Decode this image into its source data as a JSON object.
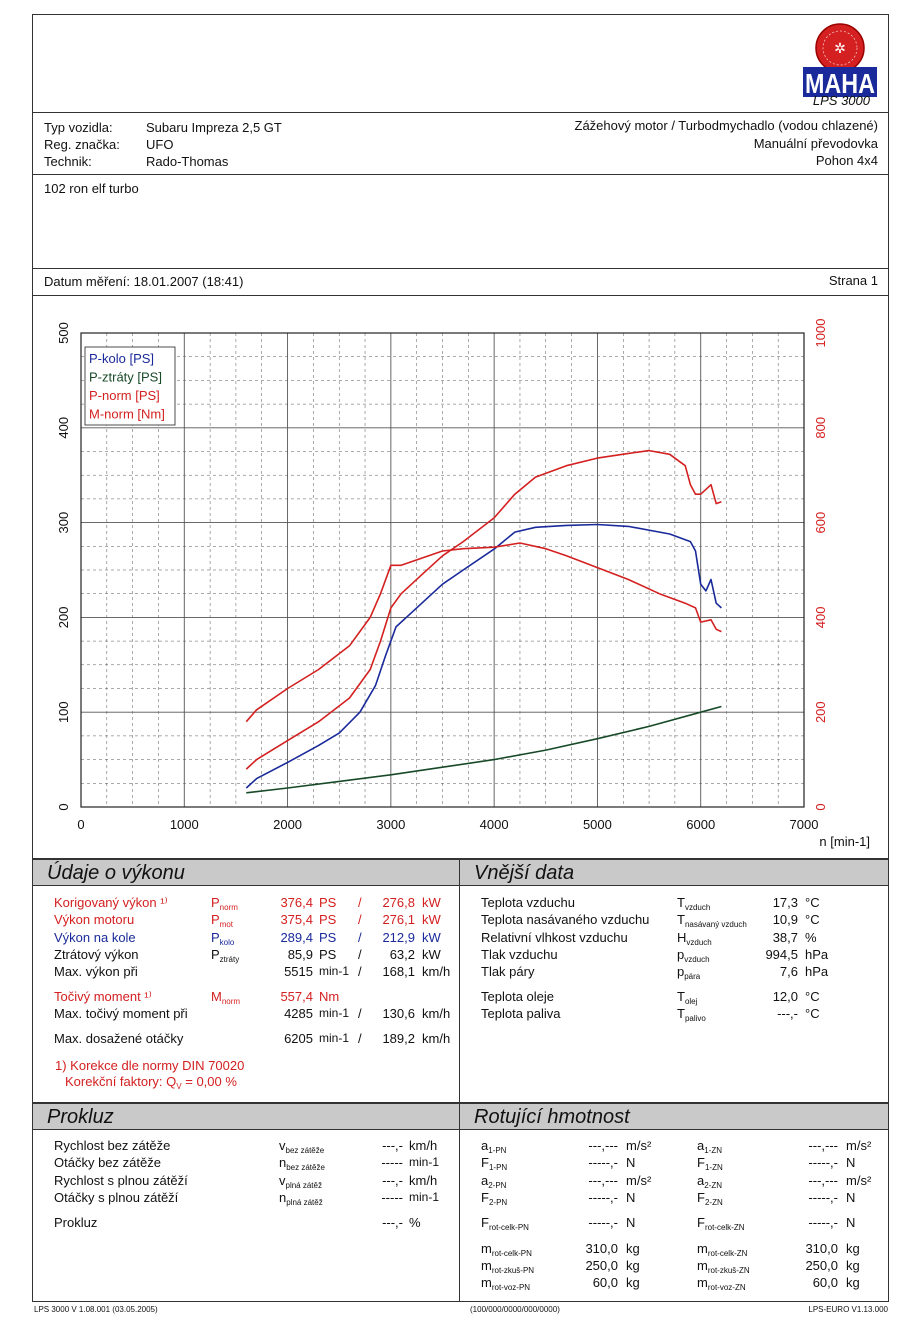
{
  "logo": {
    "brand": "MAHA",
    "model": "LPS 3000"
  },
  "vehicle": {
    "type_label": "Typ vozidla:",
    "type_value": "Subaru Impreza 2,5 GT",
    "reg_label": "Reg. značka:",
    "reg_value": "UFO",
    "tech_label": "Technik:",
    "tech_value": "Rado-Thomas",
    "engine": "Zážehový motor / Turbodmychadlo (vodou chlazené)",
    "gearbox": "Manuální převodovka",
    "drive": "Pohon 4x4"
  },
  "note": "102 ron elf turbo",
  "date_line": "Datum měření: 18.01.2007 (18:41)",
  "page_label": "Strana 1",
  "chart_data": {
    "type": "line",
    "xlabel": "n [min-1]",
    "x_ticks": [
      "0",
      "1000",
      "2000",
      "3000",
      "4000",
      "5000",
      "6000",
      "7000"
    ],
    "y_left_ticks": [
      "0",
      "100",
      "200",
      "300",
      "400",
      "500"
    ],
    "y_right_ticks": [
      "0",
      "200",
      "400",
      "600",
      "800",
      "1000"
    ],
    "xlim": [
      0,
      7000
    ],
    "ylim_left": [
      0,
      500
    ],
    "ylim_right": [
      0,
      1000
    ],
    "grid": true,
    "legend_position": "top-left",
    "series": [
      {
        "name": "P-kolo [PS]",
        "color": "#1a2a9a",
        "axis": "left",
        "points": [
          [
            1600,
            20
          ],
          [
            1700,
            30
          ],
          [
            2000,
            47
          ],
          [
            2300,
            65
          ],
          [
            2500,
            78
          ],
          [
            2700,
            100
          ],
          [
            2850,
            128
          ],
          [
            2950,
            160
          ],
          [
            3050,
            190
          ],
          [
            3200,
            205
          ],
          [
            3300,
            215
          ],
          [
            3500,
            235
          ],
          [
            3700,
            250
          ],
          [
            4000,
            272
          ],
          [
            4200,
            290
          ],
          [
            4400,
            295
          ],
          [
            4700,
            297
          ],
          [
            5000,
            298
          ],
          [
            5300,
            296
          ],
          [
            5700,
            288
          ],
          [
            5900,
            280
          ],
          [
            5950,
            270
          ],
          [
            6000,
            235
          ],
          [
            6050,
            228
          ],
          [
            6100,
            240
          ],
          [
            6150,
            215
          ],
          [
            6200,
            210
          ]
        ]
      },
      {
        "name": "P-ztráty [PS]",
        "color": "#184a28",
        "axis": "left",
        "points": [
          [
            1600,
            15
          ],
          [
            2000,
            20
          ],
          [
            2500,
            27
          ],
          [
            3000,
            34
          ],
          [
            3500,
            42
          ],
          [
            4000,
            50
          ],
          [
            4500,
            60
          ],
          [
            5000,
            72
          ],
          [
            5500,
            85
          ],
          [
            6000,
            100
          ],
          [
            6200,
            106
          ]
        ]
      },
      {
        "name": "P-norm [PS]",
        "color": "#d42020",
        "axis": "left",
        "points": [
          [
            1600,
            40
          ],
          [
            1700,
            50
          ],
          [
            2000,
            70
          ],
          [
            2300,
            90
          ],
          [
            2600,
            115
          ],
          [
            2800,
            145
          ],
          [
            2900,
            175
          ],
          [
            3000,
            210
          ],
          [
            3100,
            225
          ],
          [
            3300,
            245
          ],
          [
            3500,
            265
          ],
          [
            3700,
            280
          ],
          [
            4000,
            305
          ],
          [
            4200,
            330
          ],
          [
            4400,
            348
          ],
          [
            4700,
            360
          ],
          [
            5000,
            368
          ],
          [
            5300,
            373
          ],
          [
            5500,
            376
          ],
          [
            5700,
            372
          ],
          [
            5850,
            360
          ],
          [
            5900,
            340
          ],
          [
            5950,
            330
          ],
          [
            6000,
            330
          ],
          [
            6100,
            340
          ],
          [
            6150,
            320
          ],
          [
            6200,
            322
          ]
        ]
      },
      {
        "name": "M-norm [Nm]",
        "color": "#d42020",
        "axis": "right",
        "points": [
          [
            1600,
            180
          ],
          [
            1700,
            205
          ],
          [
            2000,
            250
          ],
          [
            2300,
            290
          ],
          [
            2600,
            340
          ],
          [
            2800,
            400
          ],
          [
            2900,
            450
          ],
          [
            3000,
            510
          ],
          [
            3100,
            510
          ],
          [
            3300,
            525
          ],
          [
            3500,
            540
          ],
          [
            3700,
            545
          ],
          [
            4000,
            548
          ],
          [
            4250,
            557
          ],
          [
            4500,
            545
          ],
          [
            4700,
            530
          ],
          [
            5000,
            505
          ],
          [
            5300,
            480
          ],
          [
            5600,
            450
          ],
          [
            5850,
            430
          ],
          [
            5950,
            420
          ],
          [
            6000,
            390
          ],
          [
            6100,
            395
          ],
          [
            6150,
            375
          ],
          [
            6200,
            370
          ]
        ]
      }
    ]
  },
  "perf": {
    "title": "Údaje o výkonu",
    "rows": [
      {
        "label": "Korigovaný výkon ¹⁾",
        "sym": "P",
        "sub": "norm",
        "v1": "376,4",
        "u1": "PS",
        "sep": "/",
        "v2": "276,8",
        "u2": "kW",
        "color": "red"
      },
      {
        "label": "Výkon motoru",
        "sym": "P",
        "sub": "mot",
        "v1": "375,4",
        "u1": "PS",
        "sep": "/",
        "v2": "276,1",
        "u2": "kW",
        "color": "red"
      },
      {
        "label": "Výkon na kole",
        "sym": "P",
        "sub": "kolo",
        "v1": "289,4",
        "u1": "PS",
        "sep": "/",
        "v2": "212,9",
        "u2": "kW",
        "color": "blue"
      },
      {
        "label": "Ztrátový výkon",
        "sym": "P",
        "sub": "ztráty",
        "v1": "85,9",
        "u1": "PS",
        "sep": "/",
        "v2": "63,2",
        "u2": "kW",
        "color": "black"
      },
      {
        "label": "Max. výkon při",
        "sym": "",
        "sub": "",
        "v1": "5515",
        "u1": "min-1",
        "sep": "/",
        "v2": "168,1",
        "u2": "km/h",
        "color": "black"
      },
      {
        "label": "Točivý moment ¹⁾",
        "sym": "M",
        "sub": "norm",
        "v1": "557,4",
        "u1": "Nm",
        "sep": "",
        "v2": "",
        "u2": "",
        "color": "red"
      },
      {
        "label": "Max. točivý moment při",
        "sym": "",
        "sub": "",
        "v1": "4285",
        "u1": "min-1",
        "sep": "/",
        "v2": "130,6",
        "u2": "km/h",
        "color": "black"
      },
      {
        "label": "Max. dosažené otáčky",
        "sym": "",
        "sub": "",
        "v1": "6205",
        "u1": "min-1",
        "sep": "/",
        "v2": "189,2",
        "u2": "km/h",
        "color": "black"
      }
    ],
    "footnote1": "1) Korekce dle normy DIN 70020",
    "footnote2": "Korekční faktory: Q",
    "footnote2_sub": "V",
    "footnote2_val": "= 0,00 %"
  },
  "ext": {
    "title": "Vnější data",
    "rows": [
      {
        "label": "Teplota vzduchu",
        "sym": "T",
        "sub": "vzduch",
        "val": "17,3",
        "unit": "°C"
      },
      {
        "label": "Teplota nasávaného vzduchu",
        "sym": "T",
        "sub": "nasávaný vzduch",
        "val": "10,9",
        "unit": "°C"
      },
      {
        "label": "Relativní vlhkost vzduchu",
        "sym": "H",
        "sub": "vzduch",
        "val": "38,7",
        "unit": "%"
      },
      {
        "label": "Tlak vzduchu",
        "sym": "p",
        "sub": "vzduch",
        "val": "994,5",
        "unit": "hPa"
      },
      {
        "label": "Tlak páry",
        "sym": "p",
        "sub": "pára",
        "val": "7,6",
        "unit": "hPa"
      },
      {
        "label": "Teplota oleje",
        "sym": "T",
        "sub": "olej",
        "val": "12,0",
        "unit": "°C"
      },
      {
        "label": "Teplota paliva",
        "sym": "T",
        "sub": "palivo",
        "val": "---,-",
        "unit": "°C"
      }
    ]
  },
  "prokluz": {
    "title": "Prokluz",
    "rows": [
      {
        "label": "Rychlost bez zátěže",
        "sym": "v",
        "sub": "bez zátěže",
        "val": "---,-",
        "unit": "km/h"
      },
      {
        "label": "Otáčky bez zátěže",
        "sym": "n",
        "sub": "bez zátěže",
        "val": "-----",
        "unit": "min-1"
      },
      {
        "label": "Rychlost s plnou zátěží",
        "sym": "v",
        "sub": "plná zátěž",
        "val": "---,-",
        "unit": "km/h"
      },
      {
        "label": "Otáčky s plnou zátěží",
        "sym": "n",
        "sub": "plná zátěž",
        "val": "-----",
        "unit": "min-1"
      },
      {
        "label": "Prokluz",
        "sym": "",
        "sub": "",
        "val": "---,-",
        "unit": "%"
      }
    ]
  },
  "rot": {
    "title": "Rotující hmotnost",
    "left": [
      {
        "sym": "a",
        "sub": "1-PN",
        "val": "---,---",
        "unit": "m/s²"
      },
      {
        "sym": "F",
        "sub": "1-PN",
        "val": "-----,-",
        "unit": "N"
      },
      {
        "sym": "a",
        "sub": "2-PN",
        "val": "---,---",
        "unit": "m/s²"
      },
      {
        "sym": "F",
        "sub": "2-PN",
        "val": "-----,-",
        "unit": "N"
      },
      {
        "sym": "F",
        "sub": "rot-celk-PN",
        "val": "-----,-",
        "unit": "N"
      },
      {
        "sym": "m",
        "sub": "rot-celk-PN",
        "val": "310,0",
        "unit": "kg"
      },
      {
        "sym": "m",
        "sub": "rot-zkuš-PN",
        "val": "250,0",
        "unit": "kg"
      },
      {
        "sym": "m",
        "sub": "rot-voz-PN",
        "val": "60,0",
        "unit": "kg"
      }
    ],
    "right": [
      {
        "sym": "a",
        "sub": "1-ZN",
        "val": "---,---",
        "unit": "m/s²"
      },
      {
        "sym": "F",
        "sub": "1-ZN",
        "val": "-----,-",
        "unit": "N"
      },
      {
        "sym": "a",
        "sub": "2-ZN",
        "val": "---,---",
        "unit": "m/s²"
      },
      {
        "sym": "F",
        "sub": "2-ZN",
        "val": "-----,-",
        "unit": "N"
      },
      {
        "sym": "F",
        "sub": "rot-celk-ZN",
        "val": "-----,-",
        "unit": "N"
      },
      {
        "sym": "m",
        "sub": "rot-celk-ZN",
        "val": "310,0",
        "unit": "kg"
      },
      {
        "sym": "m",
        "sub": "rot-zkuš-ZN",
        "val": "250,0",
        "unit": "kg"
      },
      {
        "sym": "m",
        "sub": "rot-voz-ZN",
        "val": "60,0",
        "unit": "kg"
      }
    ]
  },
  "footer": {
    "left": "LPS 3000 V 1.08.001 (03.05.2005)",
    "center": "(100/000/0000/000/0000)",
    "right": "LPS-EURO V1.13.000"
  }
}
